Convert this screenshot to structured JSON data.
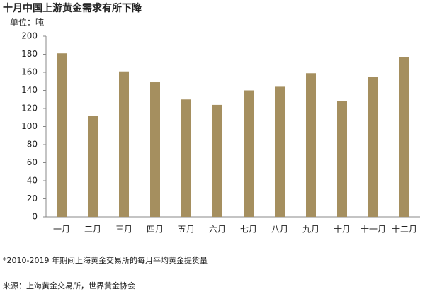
{
  "chart_data": {
    "type": "bar",
    "title": "十月中国上游黄金需求有所下降",
    "y_label": "单位：吨",
    "categories": [
      "一月",
      "二月",
      "三月",
      "四月",
      "五月",
      "六月",
      "七月",
      "八月",
      "九月",
      "十月",
      "十一月",
      "十二月"
    ],
    "values": [
      181,
      112,
      161,
      149,
      130,
      124,
      140,
      144,
      159,
      128,
      155,
      177
    ],
    "color": "#a58f5f",
    "ylim": [
      0,
      200
    ],
    "yticks": [
      0,
      20,
      40,
      60,
      80,
      100,
      120,
      140,
      160,
      180,
      200
    ],
    "grid": false,
    "note": "*2010-2019 年期间上海黄金交易所的每月平均黄金提货量",
    "source": "来源：上海黄金交易所，世界黄金协会"
  }
}
